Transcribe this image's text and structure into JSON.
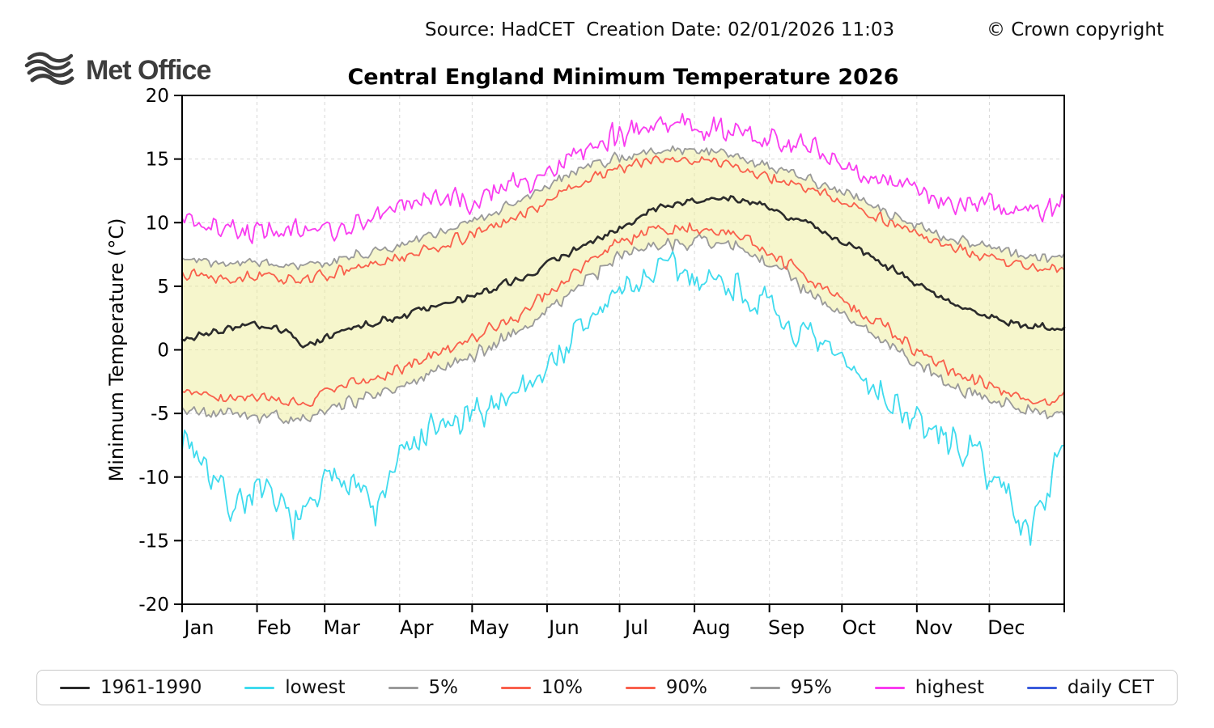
{
  "header": {
    "source_line": "Source: HadCET  Creation Date: 02/01/2026 11:03",
    "copyright": "© Crown copyright"
  },
  "logo": {
    "text": "Met Office"
  },
  "chart_data": {
    "type": "line",
    "title": "Central England Minimum Temperature 2026",
    "xlabel": "",
    "ylabel": "Minimum Temperature (°C)",
    "ylim": [
      -20,
      20
    ],
    "yticks": [
      -20,
      -15,
      -10,
      -5,
      0,
      5,
      10,
      15,
      20
    ],
    "x_tick_labels": [
      "Jan",
      "Feb",
      "Mar",
      "Apr",
      "May",
      "Jun",
      "Jul",
      "Aug",
      "Sep",
      "Oct",
      "Nov",
      "Dec"
    ],
    "month_start_days": [
      0,
      31,
      59,
      90,
      120,
      151,
      181,
      212,
      243,
      273,
      304,
      334
    ],
    "days_in_year": 365,
    "grid": true,
    "legend_position": "bottom",
    "band": {
      "lower_series": "5%",
      "upper_series": "95%",
      "color": "#eeee99",
      "opacity": 0.5
    },
    "control_days": [
      0,
      10,
      20,
      30,
      40,
      50,
      60,
      70,
      80,
      90,
      100,
      110,
      120,
      130,
      140,
      150,
      160,
      170,
      180,
      190,
      200,
      210,
      220,
      230,
      240,
      250,
      260,
      270,
      280,
      290,
      300,
      310,
      320,
      330,
      340,
      350,
      360,
      365
    ],
    "series": [
      {
        "name": "1961-1990",
        "color": "#2b2b2b",
        "width": 2.6,
        "noise": 0.5,
        "seed": 3,
        "trend": [
          0.9,
          1.2,
          1.7,
          1.9,
          1.6,
          0.3,
          1.0,
          1.8,
          2.2,
          2.6,
          3.2,
          3.6,
          4.2,
          4.8,
          5.6,
          6.6,
          7.6,
          8.6,
          9.6,
          10.6,
          11.3,
          11.7,
          11.9,
          11.8,
          11.4,
          10.6,
          9.8,
          8.8,
          7.8,
          6.8,
          5.6,
          4.6,
          3.6,
          2.8,
          2.2,
          1.9,
          1.7,
          1.6
        ]
      },
      {
        "name": "lowest",
        "color": "#3fdbee",
        "width": 1.8,
        "noise": 2.2,
        "seed": 7,
        "trend": [
          -6.5,
          -9.0,
          -12.3,
          -11.0,
          -12.5,
          -13.5,
          -10.5,
          -9.5,
          -13.0,
          -8.5,
          -7.0,
          -6.0,
          -5.5,
          -4.0,
          -3.0,
          -1.5,
          0.5,
          2.5,
          4.5,
          5.5,
          6.5,
          5.8,
          5.5,
          5.0,
          3.5,
          2.0,
          0.5,
          -0.5,
          -2.0,
          -3.5,
          -5.0,
          -6.5,
          -7.5,
          -8.5,
          -11.0,
          -14.5,
          -10.0,
          -7.5
        ]
      },
      {
        "name": "5%",
        "color": "#9a9a9a",
        "width": 1.8,
        "noise": 0.9,
        "seed": 5,
        "trend": [
          -4.8,
          -4.9,
          -5.0,
          -5.2,
          -5.3,
          -5.5,
          -4.6,
          -4.0,
          -3.5,
          -2.8,
          -2.0,
          -1.2,
          -0.5,
          0.5,
          1.5,
          3.0,
          4.5,
          6.0,
          7.2,
          7.9,
          8.3,
          8.6,
          8.5,
          8.0,
          7.0,
          5.8,
          4.6,
          3.3,
          2.0,
          0.8,
          -0.6,
          -1.8,
          -2.8,
          -3.6,
          -4.2,
          -4.8,
          -5.3,
          -5.0
        ]
      },
      {
        "name": "10%",
        "color": "#f9604c",
        "width": 1.8,
        "noise": 0.8,
        "seed": 9,
        "trend": [
          -3.3,
          -3.6,
          -3.8,
          -3.9,
          -4.1,
          -4.2,
          -3.3,
          -2.8,
          -2.2,
          -1.5,
          -0.8,
          0.0,
          0.8,
          1.8,
          2.8,
          4.2,
          5.7,
          7.2,
          8.4,
          9.0,
          9.4,
          9.6,
          9.4,
          8.9,
          8.0,
          6.8,
          5.6,
          4.3,
          3.0,
          1.8,
          0.5,
          -0.7,
          -1.7,
          -2.6,
          -3.2,
          -3.7,
          -4.1,
          -3.6
        ]
      },
      {
        "name": "90%",
        "color": "#f9604c",
        "width": 1.8,
        "noise": 0.7,
        "seed": 13,
        "trend": [
          6.2,
          5.9,
          5.7,
          5.8,
          5.6,
          5.5,
          5.9,
          6.3,
          6.7,
          7.2,
          7.8,
          8.4,
          9.0,
          9.8,
          10.6,
          11.6,
          12.6,
          13.6,
          14.3,
          14.7,
          14.9,
          15.0,
          14.8,
          14.4,
          13.8,
          13.2,
          12.6,
          11.9,
          11.1,
          10.3,
          9.4,
          8.6,
          7.9,
          7.3,
          6.9,
          6.6,
          6.4,
          6.5
        ]
      },
      {
        "name": "95%",
        "color": "#9a9a9a",
        "width": 1.8,
        "noise": 0.7,
        "seed": 17,
        "trend": [
          7.3,
          7.0,
          6.8,
          6.9,
          6.7,
          6.6,
          7.0,
          7.4,
          7.8,
          8.3,
          8.9,
          9.5,
          10.1,
          10.9,
          11.7,
          12.7,
          13.6,
          14.5,
          15.1,
          15.4,
          15.6,
          15.7,
          15.5,
          15.1,
          14.5,
          13.9,
          13.3,
          12.6,
          11.8,
          11.0,
          10.1,
          9.3,
          8.6,
          8.1,
          7.7,
          7.4,
          7.2,
          7.6
        ]
      },
      {
        "name": "highest",
        "color": "#f93cf0",
        "width": 1.8,
        "noise": 1.6,
        "seed": 21,
        "trend": [
          10.5,
          9.8,
          9.3,
          9.6,
          9.4,
          9.5,
          9.3,
          9.8,
          10.3,
          11.0,
          11.6,
          12.0,
          12.0,
          12.5,
          13.0,
          14.0,
          15.3,
          16.3,
          16.8,
          17.3,
          17.8,
          17.6,
          17.4,
          17.0,
          16.6,
          16.4,
          16.2,
          14.8,
          13.8,
          13.2,
          12.6,
          12.2,
          11.8,
          11.4,
          11.2,
          11.0,
          10.8,
          11.8
        ]
      },
      {
        "name": "daily CET",
        "color": "#3a5bdc",
        "width": 1.8,
        "noise": 0,
        "seed": 0,
        "trend": []
      }
    ]
  }
}
